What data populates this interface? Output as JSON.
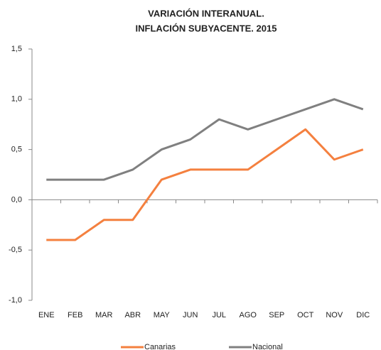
{
  "chart_data": {
    "type": "line",
    "title": "VARIACIÓN INTERANUAL.",
    "subtitle": "INFLACIÓN SUBYACENTE. 2015",
    "categories": [
      "ENE",
      "FEB",
      "MAR",
      "ABR",
      "MAY",
      "JUN",
      "JUL",
      "AGO",
      "SEP",
      "OCT",
      "NOV",
      "DIC"
    ],
    "series": [
      {
        "name": "Canarias",
        "color": "#f4803f",
        "values": [
          -0.4,
          -0.4,
          -0.2,
          -0.2,
          0.2,
          0.3,
          0.3,
          0.3,
          0.5,
          0.7,
          0.4,
          0.5
        ]
      },
      {
        "name": "Nacional",
        "color": "#808080",
        "values": [
          0.2,
          0.2,
          0.2,
          0.3,
          0.5,
          0.6,
          0.8,
          0.7,
          0.8,
          0.9,
          1.0,
          0.9
        ]
      }
    ],
    "ylim": [
      -1.0,
      1.5
    ],
    "yticks": [
      {
        "value": -1.0,
        "label": "-1,0"
      },
      {
        "value": -0.5,
        "label": "-0,5"
      },
      {
        "value": 0,
        "label": "0,0"
      },
      {
        "value": 0.5,
        "label": "0,5"
      },
      {
        "value": 1.0,
        "label": "1,0"
      },
      {
        "value": 1.5,
        "label": "1,5"
      }
    ],
    "grid": false,
    "legend": "bottom"
  }
}
